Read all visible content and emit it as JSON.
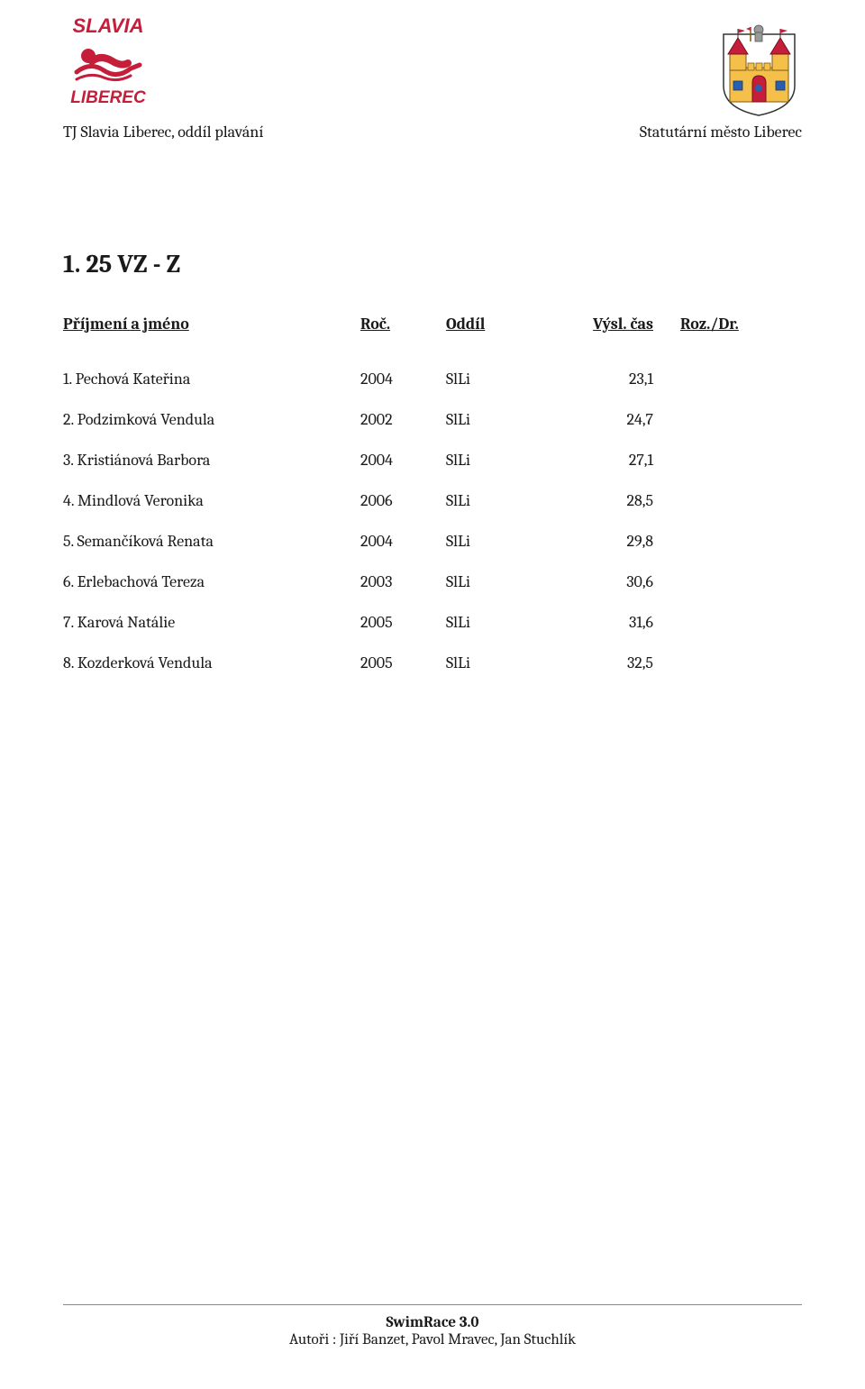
{
  "header": {
    "left_subtitle": "TJ Slavia Liberec, oddíl plavání",
    "right_subtitle": "Statutární město Liberec",
    "logo_left": {
      "top_text": "SLAVIA",
      "bottom_text": "LIBEREC",
      "text_color": "#c41e3a",
      "swimmer_color": "#c41e3a"
    },
    "logo_right": {
      "castle_body": "#f5c04a",
      "roof_color": "#c41e3a",
      "window_blue": "#2a5fb0",
      "knight_color": "#7a7a7a"
    }
  },
  "title": "1. 25 VZ -  Z",
  "columns": {
    "name": "Příjmení a jméno",
    "year": "Roč.",
    "club": "Oddíl",
    "time": "Výsl. čas",
    "rozdr": "Roz./Dr."
  },
  "rows": [
    {
      "rank": "1.",
      "name": "Pechová Kateřina",
      "year": "2004",
      "club": "SlLi",
      "time": "23,1"
    },
    {
      "rank": "2.",
      "name": "Podzimková Vendula",
      "year": "2002",
      "club": "SlLi",
      "time": "24,7"
    },
    {
      "rank": "3.",
      "name": "Kristiánová Barbora",
      "year": "2004",
      "club": "SlLi",
      "time": "27,1"
    },
    {
      "rank": "4.",
      "name": "Mindlová Veronika",
      "year": "2006",
      "club": "SlLi",
      "time": "28,5"
    },
    {
      "rank": "5.",
      "name": "Semančíková Renata",
      "year": "2004",
      "club": "SlLi",
      "time": "29,8"
    },
    {
      "rank": "6.",
      "name": "Erlebachová Tereza",
      "year": "2003",
      "club": "SlLi",
      "time": "30,6"
    },
    {
      "rank": "7.",
      "name": "Karová  Natálie",
      "year": "2005",
      "club": "SlLi",
      "time": "31,6"
    },
    {
      "rank": "8.",
      "name": "Kozderková Vendula",
      "year": "2005",
      "club": "SlLi",
      "time": "32,5"
    }
  ],
  "footer": {
    "title": "SwimRace 3.0",
    "authors": "Autoři : Jiří Banzet, Pavol Mravec, Jan Stuchlík"
  }
}
